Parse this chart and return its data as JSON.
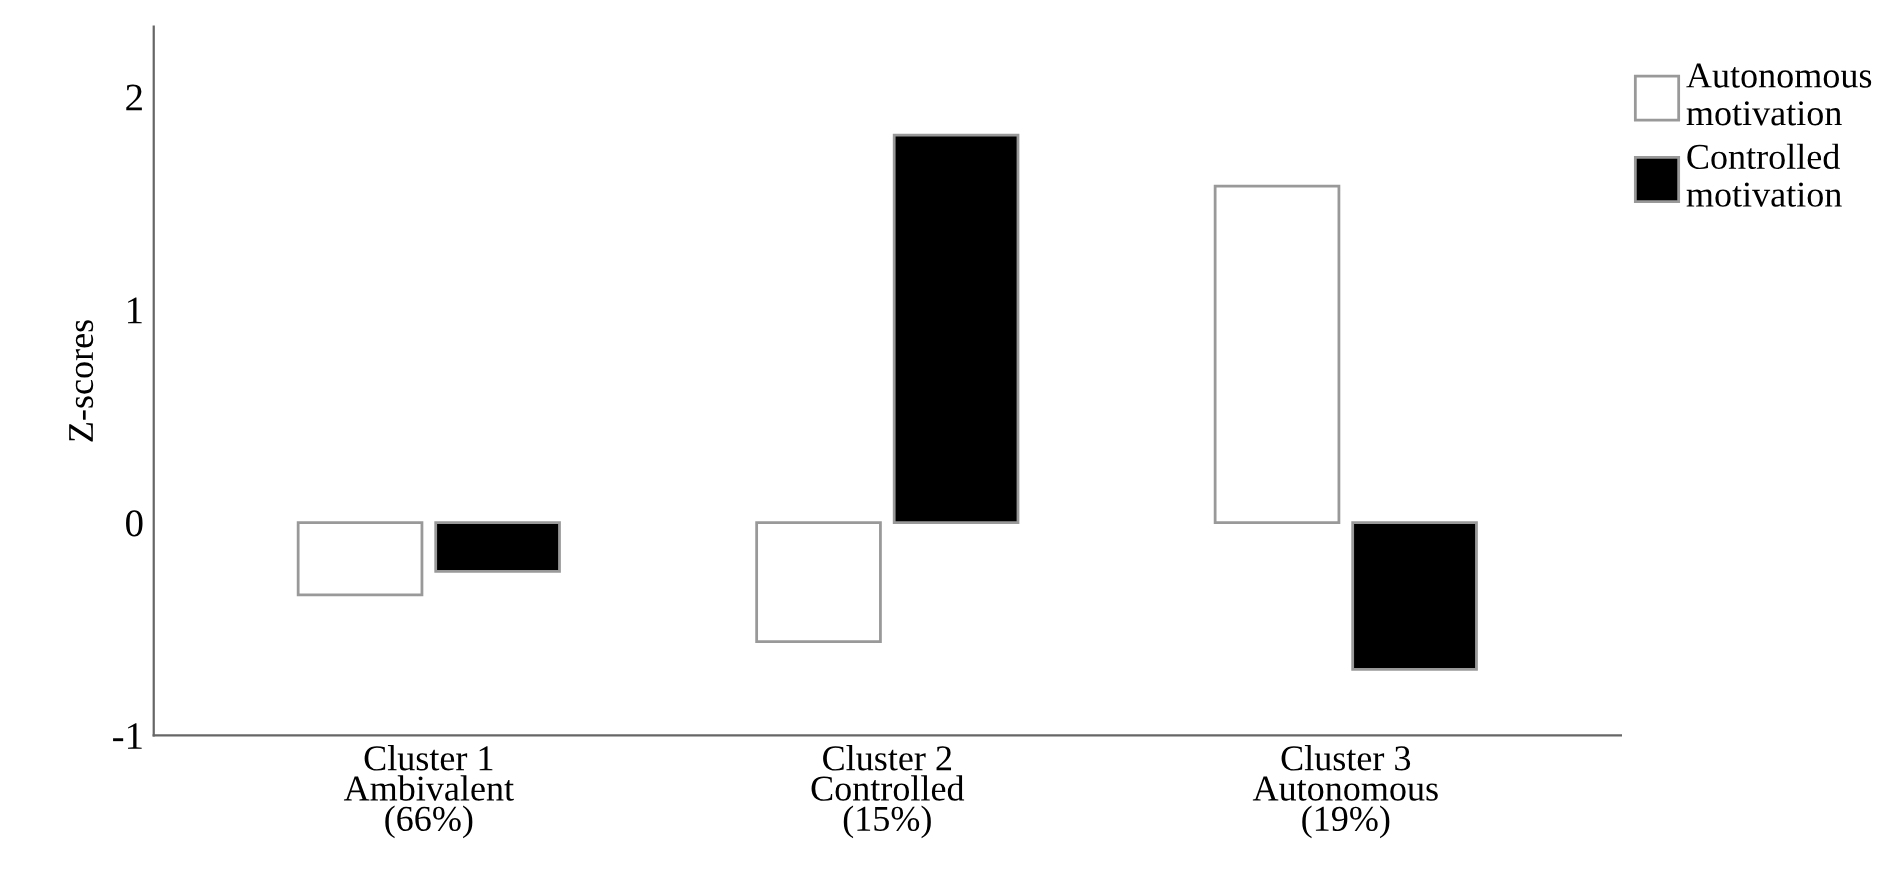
{
  "chart_data": {
    "type": "bar",
    "ylabel": "Z-scores",
    "categories": [
      "Cluster 1\nAmbivalent\n(66%)",
      "Cluster 2\nControlled\n(15%)",
      "Cluster 3\nAutonomous\n(19%)"
    ],
    "series": [
      {
        "name": "Autonomous\nmotivation",
        "color": "#ffffff",
        "values": [
          -0.34,
          -0.56,
          1.58
        ]
      },
      {
        "name": "Controlled\nmotivation",
        "color": "#000000",
        "values": [
          -0.23,
          1.82,
          -0.69
        ]
      }
    ],
    "ylim": [
      -1,
      2.33
    ],
    "yticks": [
      -1,
      0,
      1,
      2
    ],
    "grid": false,
    "legend": "top right"
  }
}
